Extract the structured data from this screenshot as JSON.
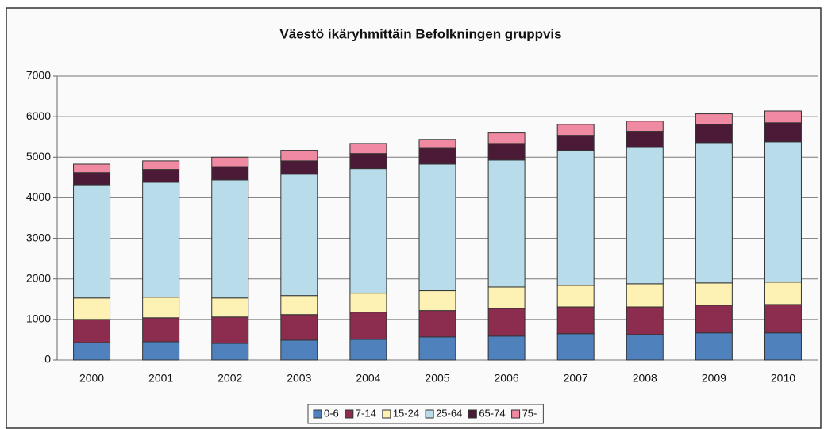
{
  "chart_data": {
    "type": "stacked_bar",
    "title": "Väestö ikäryhmittäin Befolkningen gruppvis",
    "categories": [
      "2000",
      "2001",
      "2002",
      "2003",
      "2004",
      "2005",
      "2006",
      "2007",
      "2008",
      "2009",
      "2010"
    ],
    "series": [
      {
        "name": "0-6",
        "color": "#4f81bd",
        "values": [
          430,
          450,
          410,
          490,
          510,
          570,
          590,
          650,
          630,
          670,
          670
        ]
      },
      {
        "name": "7-14",
        "color": "#8c2d4f",
        "values": [
          570,
          590,
          650,
          630,
          670,
          650,
          680,
          660,
          680,
          680,
          700
        ]
      },
      {
        "name": "15-24",
        "color": "#fdf1b4",
        "values": [
          530,
          510,
          470,
          470,
          470,
          490,
          530,
          530,
          570,
          550,
          550
        ]
      },
      {
        "name": "25-64",
        "color": "#b9dcea",
        "values": [
          2790,
          2830,
          2910,
          2990,
          3070,
          3120,
          3130,
          3330,
          3360,
          3460,
          3460
        ]
      },
      {
        "name": "65-74",
        "color": "#4b1a36",
        "values": [
          300,
          320,
          330,
          330,
          370,
          390,
          410,
          370,
          400,
          450,
          470
        ]
      },
      {
        "name": "75-",
        "color": "#ef8aa2",
        "values": [
          210,
          210,
          230,
          260,
          250,
          220,
          260,
          270,
          250,
          260,
          290
        ]
      }
    ],
    "ylim": [
      0,
      7000
    ],
    "yticks": [
      0,
      1000,
      2000,
      3000,
      4000,
      5000,
      6000,
      7000
    ],
    "grid": true,
    "legend": "bottom"
  }
}
